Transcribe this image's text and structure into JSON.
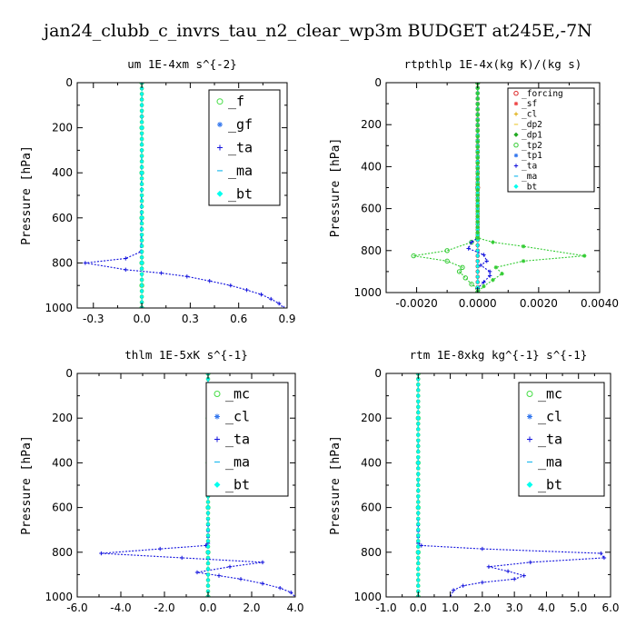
{
  "figure": {
    "title": "jan24_clubb_c_invrs_tau_n2_clear_wp3m  BUDGET at245E,-7N"
  },
  "chart_data": [
    {
      "type": "line",
      "title": "um  1E-4xm s^{-2}",
      "ylabel": "Pressure [hPa]",
      "xlim": [
        -0.4,
        0.9
      ],
      "ylim": [
        1000,
        0
      ],
      "xticks": [
        -0.3,
        0.0,
        0.3,
        0.6,
        0.9
      ],
      "xtick_labels": [
        "-0.3",
        "0.0",
        "0.3",
        "0.6",
        "0.9"
      ],
      "yticks": [
        0,
        200,
        400,
        600,
        800,
        1000
      ],
      "ytick_labels": [
        "0",
        "200",
        "400",
        "600",
        "800",
        "1000"
      ],
      "legend_position": "top-right",
      "series": [
        {
          "name": "_f",
          "color": "#44dd44",
          "marker": "circle",
          "points": [
            [
              0.0,
              0
            ],
            [
              0.0,
              200
            ],
            [
              0.0,
              400
            ],
            [
              0.0,
              600
            ],
            [
              0.0,
              800
            ],
            [
              0.0,
              900
            ],
            [
              0.0,
              1000
            ]
          ]
        },
        {
          "name": "_gf",
          "color": "#3377ee",
          "marker": "star",
          "points": [
            [
              0.0,
              0
            ],
            [
              0.0,
              200
            ],
            [
              0.0,
              400
            ],
            [
              0.0,
              600
            ],
            [
              0.0,
              800
            ],
            [
              0.0,
              1000
            ]
          ]
        },
        {
          "name": "_ta",
          "color": "#1111dd",
          "marker": "plus",
          "points": [
            [
              0.0,
              0
            ],
            [
              0.0,
              150
            ],
            [
              -0.005,
              750
            ],
            [
              -0.1,
              780
            ],
            [
              -0.35,
              800
            ],
            [
              -0.1,
              830
            ],
            [
              0.12,
              845
            ],
            [
              0.28,
              860
            ],
            [
              0.42,
              880
            ],
            [
              0.55,
              900
            ],
            [
              0.65,
              920
            ],
            [
              0.74,
              940
            ],
            [
              0.8,
              960
            ],
            [
              0.85,
              980
            ],
            [
              0.88,
              1000
            ]
          ]
        },
        {
          "name": "_ma",
          "color": "#22bbee",
          "marker": "dash",
          "points": [
            [
              0.0,
              0
            ],
            [
              0.0,
              200
            ],
            [
              0.0,
              400
            ],
            [
              0.0,
              600
            ],
            [
              0.0,
              800
            ],
            [
              0.0,
              1000
            ]
          ]
        },
        {
          "name": "_bt",
          "color": "#00ffee",
          "marker": "diamond",
          "points": [
            [
              0.0,
              0
            ],
            [
              0.0,
              200
            ],
            [
              0.0,
              400
            ],
            [
              0.0,
              600
            ],
            [
              0.0,
              800
            ],
            [
              0.0,
              1000
            ]
          ]
        }
      ]
    },
    {
      "type": "line",
      "title": "rtpthlp  1E-4x(kg K)/(kg s)",
      "ylabel": "Pressure [hPa]",
      "xlim": [
        -0.003,
        0.004
      ],
      "ylim": [
        1000,
        0
      ],
      "xticks": [
        -0.002,
        0.0,
        0.002,
        0.004
      ],
      "xtick_labels": [
        "-0.0020",
        "0.0000",
        "0.0020",
        "0.0040"
      ],
      "yticks": [
        0,
        200,
        400,
        600,
        800,
        1000
      ],
      "ytick_labels": [
        "0",
        "200",
        "400",
        "600",
        "800",
        "1000"
      ],
      "legend_position": "top-right",
      "series": [
        {
          "name": "_forcing",
          "color": "#dd2222",
          "marker": "circle",
          "points": [
            [
              0.0,
              0
            ],
            [
              0.0,
              500
            ],
            [
              0.0,
              1000
            ]
          ]
        },
        {
          "name": "_sf",
          "color": "#ee4444",
          "marker": "star",
          "points": [
            [
              0.0,
              0
            ],
            [
              0.0,
              500
            ],
            [
              0.0,
              1000
            ]
          ]
        },
        {
          "name": "_cl",
          "color": "#ddaa00",
          "marker": "plus",
          "points": [
            [
              0.0,
              0
            ],
            [
              0.0,
              500
            ],
            [
              0.0,
              1000
            ]
          ]
        },
        {
          "name": "_dp2",
          "color": "#eecc44",
          "marker": "dash",
          "points": [
            [
              0.0,
              0
            ],
            [
              0.0,
              500
            ],
            [
              0.0,
              1000
            ]
          ]
        },
        {
          "name": "_dp1",
          "color": "#22aa22",
          "marker": "diamond",
          "points": [
            [
              0.0,
              0
            ],
            [
              0.0,
              500
            ],
            [
              0.0,
              1000
            ]
          ]
        },
        {
          "name": "_tp2",
          "color": "#33cc33",
          "marker": "circle",
          "points": [
            [
              0.0,
              0
            ],
            [
              0.0,
              740
            ],
            [
              -0.0002,
              760
            ],
            [
              -0.001,
              800
            ],
            [
              -0.0021,
              825
            ],
            [
              -0.001,
              850
            ],
            [
              -0.0005,
              880
            ],
            [
              -0.0006,
              900
            ],
            [
              -0.0004,
              930
            ],
            [
              -0.0002,
              960
            ],
            [
              0.0,
              980
            ],
            [
              0.0,
              1000
            ]
          ]
        },
        {
          "name": "_tp1",
          "color": "#3377ee",
          "marker": "star",
          "points": [
            [
              0.0,
              0
            ],
            [
              0.0,
              500
            ],
            [
              0.0,
              1000
            ]
          ]
        },
        {
          "name": "_ta",
          "color": "#1111dd",
          "marker": "plus",
          "points": [
            [
              0.0,
              0
            ],
            [
              0.0,
              740
            ],
            [
              -0.0002,
              760
            ],
            [
              -0.0003,
              790
            ],
            [
              0.0002,
              820
            ],
            [
              0.0003,
              850
            ],
            [
              0.0001,
              870
            ],
            [
              0.0004,
              900
            ],
            [
              0.0004,
              920
            ],
            [
              0.0002,
              950
            ],
            [
              0.0,
              980
            ],
            [
              0.0,
              1000
            ]
          ]
        },
        {
          "name": "_ma",
          "color": "#22bbee",
          "marker": "dash",
          "points": [
            [
              0.0,
              0
            ],
            [
              0.0,
              500
            ],
            [
              0.0,
              1000
            ]
          ]
        },
        {
          "name": "_bt",
          "color": "#00ffee",
          "marker": "diamond",
          "points": [
            [
              0.0,
              0
            ],
            [
              0.0,
              500
            ],
            [
              0.0,
              1000
            ]
          ]
        },
        {
          "name": "",
          "color": "#33cc33",
          "marker": "star",
          "points": [
            [
              0.0,
              0
            ],
            [
              0.0,
              740
            ],
            [
              0.0005,
              760
            ],
            [
              0.0015,
              780
            ],
            [
              0.0035,
              825
            ],
            [
              0.0015,
              850
            ],
            [
              0.0006,
              880
            ],
            [
              0.0008,
              910
            ],
            [
              0.0005,
              940
            ],
            [
              0.0002,
              970
            ],
            [
              0.0,
              1000
            ]
          ]
        }
      ]
    },
    {
      "type": "line",
      "title": "thlm  1E-5xK s^{-1}",
      "ylabel": "Pressure [hPa]",
      "xlim": [
        -6.0,
        4.0
      ],
      "ylim": [
        1000,
        0
      ],
      "xticks": [
        -6.0,
        -4.0,
        -2.0,
        0.0,
        2.0,
        4.0
      ],
      "xtick_labels": [
        "-6.0",
        "-4.0",
        "-2.0",
        "0.0",
        "2.0",
        "4.0"
      ],
      "yticks": [
        0,
        200,
        400,
        600,
        800,
        1000
      ],
      "ytick_labels": [
        "0",
        "200",
        "400",
        "600",
        "800",
        "1000"
      ],
      "legend_position": "top-right",
      "series": [
        {
          "name": "_mc",
          "color": "#44dd44",
          "marker": "circle",
          "points": [
            [
              0.0,
              0
            ],
            [
              0.0,
              200
            ],
            [
              0.0,
              400
            ],
            [
              0.0,
              600
            ],
            [
              0.0,
              800
            ],
            [
              0.0,
              1000
            ]
          ]
        },
        {
          "name": "_cl",
          "color": "#3377ee",
          "marker": "star",
          "points": [
            [
              0.0,
              0
            ],
            [
              0.0,
              200
            ],
            [
              0.0,
              400
            ],
            [
              0.0,
              600
            ],
            [
              0.0,
              800
            ],
            [
              0.0,
              1000
            ]
          ]
        },
        {
          "name": "_ta",
          "color": "#1111dd",
          "marker": "plus",
          "points": [
            [
              0.0,
              0
            ],
            [
              0.0,
              200
            ],
            [
              0.0,
              400
            ],
            [
              0.0,
              600
            ],
            [
              0.0,
              760
            ],
            [
              -0.1,
              770
            ],
            [
              -2.2,
              785
            ],
            [
              -4.9,
              805
            ],
            [
              -1.2,
              825
            ],
            [
              2.5,
              845
            ],
            [
              1.0,
              865
            ],
            [
              -0.5,
              890
            ],
            [
              0.5,
              905
            ],
            [
              1.5,
              920
            ],
            [
              2.5,
              940
            ],
            [
              3.3,
              960
            ],
            [
              3.8,
              980
            ],
            [
              4.0,
              1000
            ]
          ]
        },
        {
          "name": "_ma",
          "color": "#22bbee",
          "marker": "dash",
          "points": [
            [
              0.0,
              0
            ],
            [
              0.0,
              200
            ],
            [
              0.0,
              400
            ],
            [
              0.0,
              600
            ],
            [
              0.0,
              800
            ],
            [
              0.0,
              1000
            ]
          ]
        },
        {
          "name": "_bt",
          "color": "#00ffee",
          "marker": "diamond",
          "points": [
            [
              0.0,
              0
            ],
            [
              0.0,
              200
            ],
            [
              0.0,
              400
            ],
            [
              0.0,
              600
            ],
            [
              0.0,
              800
            ],
            [
              0.0,
              1000
            ]
          ]
        }
      ]
    },
    {
      "type": "line",
      "title": "rtm  1E-8xkg kg^{-1} s^{-1}",
      "ylabel": "Pressure [hPa]",
      "xlim": [
        -1.0,
        6.0
      ],
      "ylim": [
        1000,
        0
      ],
      "xticks": [
        -1.0,
        0.0,
        1.0,
        2.0,
        3.0,
        4.0,
        5.0,
        6.0
      ],
      "xtick_labels": [
        "-1.0",
        "0.0",
        "1.0",
        "2.0",
        "3.0",
        "4.0",
        "5.0",
        "6.0"
      ],
      "yticks": [
        0,
        200,
        400,
        600,
        800,
        1000
      ],
      "ytick_labels": [
        "0",
        "200",
        "400",
        "600",
        "800",
        "1000"
      ],
      "legend_position": "top-right",
      "series": [
        {
          "name": "_mc",
          "color": "#44dd44",
          "marker": "circle",
          "points": [
            [
              0.0,
              0
            ],
            [
              0.0,
              200
            ],
            [
              0.0,
              400
            ],
            [
              0.0,
              600
            ],
            [
              0.0,
              800
            ],
            [
              0.0,
              1000
            ]
          ]
        },
        {
          "name": "_cl",
          "color": "#3377ee",
          "marker": "star",
          "points": [
            [
              0.0,
              0
            ],
            [
              0.0,
              200
            ],
            [
              0.0,
              400
            ],
            [
              0.0,
              600
            ],
            [
              0.0,
              800
            ],
            [
              0.0,
              1000
            ]
          ]
        },
        {
          "name": "_ta",
          "color": "#1111dd",
          "marker": "plus",
          "points": [
            [
              0.0,
              0
            ],
            [
              0.0,
              200
            ],
            [
              0.0,
              400
            ],
            [
              0.0,
              600
            ],
            [
              0.0,
              760
            ],
            [
              0.1,
              770
            ],
            [
              2.0,
              785
            ],
            [
              5.7,
              805
            ],
            [
              5.8,
              825
            ],
            [
              3.5,
              845
            ],
            [
              2.2,
              865
            ],
            [
              2.8,
              885
            ],
            [
              3.3,
              905
            ],
            [
              3.0,
              920
            ],
            [
              2.0,
              935
            ],
            [
              1.4,
              950
            ],
            [
              1.1,
              970
            ],
            [
              1.0,
              1000
            ]
          ]
        },
        {
          "name": "_ma",
          "color": "#22bbee",
          "marker": "dash",
          "points": [
            [
              0.0,
              0
            ],
            [
              0.0,
              200
            ],
            [
              0.0,
              400
            ],
            [
              0.0,
              600
            ],
            [
              0.0,
              800
            ],
            [
              0.0,
              1000
            ]
          ]
        },
        {
          "name": "_bt",
          "color": "#00ffee",
          "marker": "diamond",
          "points": [
            [
              0.0,
              0
            ],
            [
              0.0,
              200
            ],
            [
              0.0,
              400
            ],
            [
              0.0,
              600
            ],
            [
              0.0,
              800
            ],
            [
              0.0,
              1000
            ]
          ]
        }
      ]
    }
  ]
}
